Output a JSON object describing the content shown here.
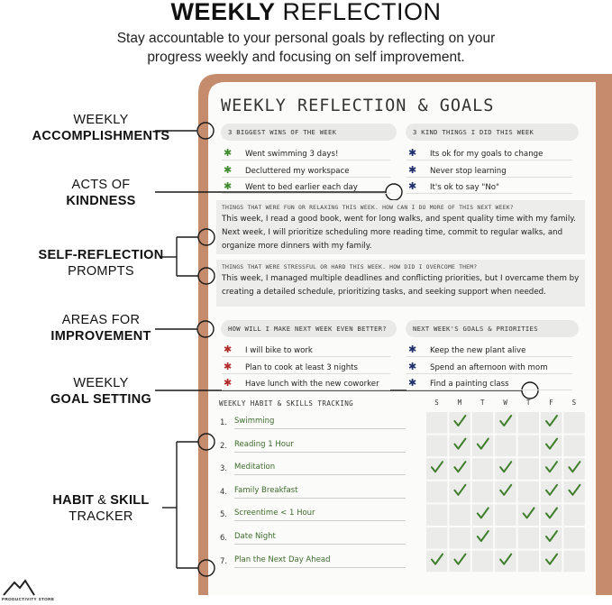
{
  "header": {
    "title_bold": "WEEKLY",
    "title_light": "REFLECTION",
    "subtitle": "Stay accountable to your personal goals by reflecting on your progress weekly and focusing on self improvement."
  },
  "callouts": [
    {
      "lines": [
        [
          {
            "text": "WEEKLY",
            "bold": false
          }
        ],
        [
          {
            "text": "ACCOMPLISHMENTS",
            "bold": true
          }
        ]
      ]
    },
    {
      "lines": [
        [
          {
            "text": "ACTS OF",
            "bold": false
          }
        ],
        [
          {
            "text": "KINDNESS",
            "bold": true
          }
        ]
      ]
    },
    {
      "lines": [
        [
          {
            "text": "SELF-REFLECTION",
            "bold": true
          }
        ],
        [
          {
            "text": "PROMPTS",
            "bold": false
          }
        ]
      ]
    },
    {
      "lines": [
        [
          {
            "text": "AREAS FOR",
            "bold": false
          }
        ],
        [
          {
            "text": "IMPROVEMENT",
            "bold": true
          }
        ]
      ]
    },
    {
      "lines": [
        [
          {
            "text": "WEEKLY",
            "bold": false
          }
        ],
        [
          {
            "text": "GOAL SETTING",
            "bold": true
          }
        ]
      ]
    },
    {
      "lines": [
        [
          {
            "text": "HABIT",
            "bold": true
          },
          {
            "text": "&",
            "bold": false
          },
          {
            "text": "SKILL",
            "bold": true
          }
        ],
        [
          {
            "text": "TRACKER",
            "bold": false
          }
        ]
      ]
    }
  ],
  "notebook": {
    "title": "WEEKLY REFLECTION & GOALS",
    "wins": {
      "heading": "3 BIGGEST WINS OF THE WEEK",
      "bullet_color": "#3f8a2e",
      "items": [
        "Went swimming 3 days!",
        "Decluttered my workspace",
        "Went to bed earlier each day"
      ]
    },
    "kind": {
      "heading": "3 KIND THINGS I DID THIS WEEK",
      "bullet_color": "#1f2f6b",
      "items": [
        "Its ok for my goals to change",
        "Never stop learning",
        "It's ok to say \"No\""
      ]
    },
    "fun": {
      "prompt": "THINGS THAT WERE FUN OR RELAXING THIS WEEK. HOW CAN I DO MORE OF THIS NEXT WEEK?",
      "answer": "This week, I read a good book, went for long walks, and spent quality time with my family. Next week, I will prioritize scheduling more reading time, commit to regular walks, and organize more dinners with my family."
    },
    "stressful": {
      "prompt": "THINGS THAT WERE STRESSFUL OR HARD THIS WEEK. HOW DID I OVERCOME THEM?",
      "answer": "This week, I managed multiple deadlines and conflicting priorities, but I overcame them by creating a detailed schedule, prioritizing tasks, and seeking support when needed."
    },
    "improve": {
      "heading": "HOW WILL I MAKE NEXT WEEK EVEN BETTER?",
      "bullet_color": "#b02a2a",
      "items": [
        "I will bike to work",
        "Plan to cook at least 3 nights",
        "Have lunch with the new coworker"
      ]
    },
    "next_goals": {
      "heading": "NEXT WEEK'S GOALS & PRIORITIES",
      "bullet_color": "#1f2f6b",
      "items": [
        "Keep the new plant alive",
        "Spend an afternoon with mom",
        "Find a painting class"
      ]
    },
    "habits": {
      "heading": "WEEKLY HABIT & SKILLS TRACKING",
      "check_color": "#3f7f2c",
      "days": [
        "S",
        "M",
        "T",
        "W",
        "T",
        "F",
        "S"
      ],
      "rows": [
        {
          "number": "1.",
          "name": "Swimming",
          "checks": [
            false,
            true,
            false,
            true,
            false,
            true,
            false
          ]
        },
        {
          "number": "2.",
          "name": "Reading 1 Hour",
          "checks": [
            false,
            true,
            true,
            false,
            false,
            true,
            false
          ]
        },
        {
          "number": "3.",
          "name": "Meditation",
          "checks": [
            true,
            true,
            false,
            true,
            false,
            true,
            true
          ]
        },
        {
          "number": "4.",
          "name": "Family Breakfast",
          "checks": [
            false,
            true,
            false,
            true,
            false,
            true,
            true
          ]
        },
        {
          "number": "5.",
          "name": "Screentime < 1 Hour",
          "checks": [
            false,
            false,
            true,
            false,
            true,
            true,
            false
          ]
        },
        {
          "number": "6.",
          "name": "Date Night",
          "checks": [
            false,
            false,
            true,
            false,
            false,
            true,
            false
          ]
        },
        {
          "number": "7.",
          "name": "Plan the Next Day Ahead",
          "checks": [
            true,
            true,
            false,
            true,
            false,
            true,
            false
          ]
        }
      ]
    }
  },
  "logo": "PRODUCTIVITY STORE"
}
